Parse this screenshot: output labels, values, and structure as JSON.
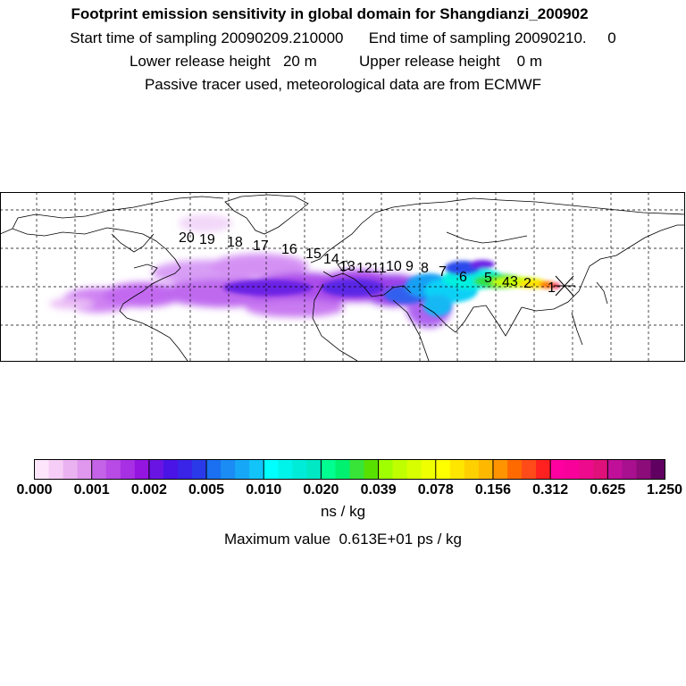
{
  "header": {
    "title": "Footprint emission sensitivity in global domain for Shangdianzi_200902",
    "line2": "Start time of sampling 20090209.210000      End time of sampling 20090210.     0",
    "line3": "Lower release height   20 m          Upper release height    0 m",
    "line4": "Passive tracer used, meteorological data are from ECMWF"
  },
  "map": {
    "day_labels": [
      "1",
      "2",
      "3",
      "4",
      "5",
      "6",
      "7",
      "8",
      "9",
      "10",
      "11",
      "12",
      "13",
      "14",
      "15",
      "16",
      "17",
      "18",
      "19",
      "20"
    ],
    "release_marker": "station-star-marker"
  },
  "colorbar": {
    "tick_labels": [
      "0.000",
      "0.001",
      "0.002",
      "0.005",
      "0.010",
      "0.020",
      "0.039",
      "0.078",
      "0.156",
      "0.312",
      "0.625",
      "1.250"
    ],
    "colors": [
      "#fde6fb",
      "#f6cdf6",
      "#ebb2f2",
      "#e097ee",
      "#c463e8",
      "#b84ae6",
      "#a830e4",
      "#9414e0",
      "#6a14e4",
      "#4a14e6",
      "#3a24e8",
      "#2a3ae8",
      "#1a70f0",
      "#1a8cf4",
      "#16a8f6",
      "#12c4f8",
      "#00ffff",
      "#00f4ea",
      "#00ecd8",
      "#00e8c4",
      "#00ff90",
      "#00f070",
      "#38e438",
      "#58e000",
      "#a0ff00",
      "#c0ff00",
      "#d8ff00",
      "#f0ff00",
      "#ffff00",
      "#ffe600",
      "#ffd000",
      "#ffb800",
      "#ff9400",
      "#ff6a00",
      "#ff4a1a",
      "#ff2020",
      "#ff00a0",
      "#f8009a",
      "#ee0a8c",
      "#e0107a",
      "#c0109a",
      "#a81090",
      "#8c0c7a",
      "#600060"
    ],
    "unit": "ns / kg"
  },
  "footer": {
    "max_value": "Maximum value  0.613E+01 ps / kg"
  }
}
